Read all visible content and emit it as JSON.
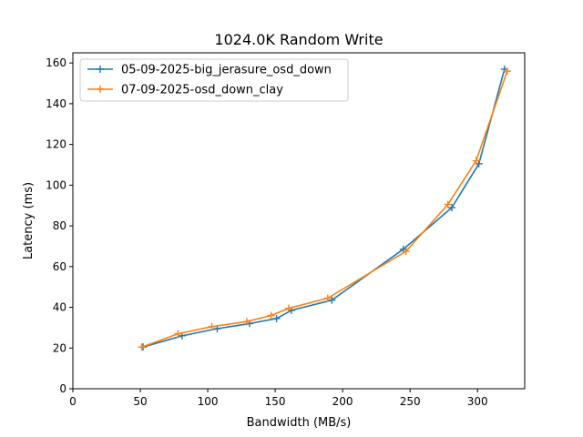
{
  "chart_data": {
    "type": "line",
    "title": "1024.0K  Random Write",
    "xlabel": "Bandwidth (MB/s)",
    "ylabel": "Latency (ms)",
    "xlim": [
      0,
      335
    ],
    "ylim": [
      0,
      165
    ],
    "xticks": [
      0,
      50,
      100,
      150,
      200,
      250,
      300
    ],
    "yticks": [
      0,
      20,
      40,
      60,
      80,
      100,
      120,
      140,
      160
    ],
    "grid": false,
    "legend_position": "top-left",
    "series": [
      {
        "name": "05-09-2025-big_jerasure_osd_down",
        "color": "#1f77b4",
        "marker": "+",
        "x": [
          52,
          81,
          107,
          131,
          151,
          162,
          192,
          245,
          281,
          301,
          320
        ],
        "y": [
          20.5,
          26,
          29.5,
          32,
          34.5,
          38.5,
          43.5,
          68.5,
          89,
          110.5,
          157
        ]
      },
      {
        "name": "07-09-2025-osd_down_clay",
        "color": "#ff7f0e",
        "marker": "+",
        "x": [
          51,
          78,
          103,
          129,
          147,
          160,
          189,
          247,
          278,
          299,
          322
        ],
        "y": [
          20.5,
          27,
          30.5,
          33,
          36,
          39.5,
          44.5,
          67.5,
          90.5,
          112,
          156
        ]
      }
    ]
  }
}
